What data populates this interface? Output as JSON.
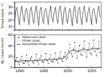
{
  "chart_data": [
    {
      "type": "line",
      "y_label": "Temperature, °C",
      "x": [
        1989,
        1989.25,
        1989.5,
        1989.75,
        1990,
        1990.25,
        1990.5,
        1990.75,
        1991,
        1991.25,
        1991.5,
        1991.75,
        1992,
        1992.25,
        1992.5,
        1992.75,
        1993,
        1993.25,
        1993.5,
        1993.75,
        1994,
        1994.25,
        1994.5,
        1994.75,
        1995,
        1995.25,
        1995.5,
        1995.75,
        1996,
        1996.25,
        1996.5,
        1996.75,
        1997,
        1997.25,
        1997.5,
        1997.75,
        1998,
        1998.25,
        1998.5,
        1998.75,
        1999,
        1999.25,
        1999.5,
        1999.75,
        2000,
        2000.25,
        2000.5,
        2000.75,
        2001,
        2001.25,
        2001.5,
        2001.75,
        2002,
        2002.25,
        2002.5,
        2002.75,
        2003,
        2003.25,
        2003.5,
        2003.75,
        2004,
        2004.25,
        2004.5,
        2004.75,
        2005,
        2005.25,
        2005.5,
        2005.75,
        2006,
        2006.25,
        2006.5,
        2006.75
      ],
      "series": [
        {
          "color": "#333333",
          "values": [
            17,
            27,
            30,
            22,
            16,
            26,
            31,
            23,
            18,
            27,
            29,
            22,
            16,
            28,
            30,
            21,
            17,
            26,
            31,
            23,
            15,
            27,
            30,
            22,
            17,
            28,
            29,
            23,
            16,
            26,
            31,
            22,
            18,
            27,
            30,
            21,
            17,
            28,
            31,
            23,
            16,
            27,
            30,
            22,
            17,
            26,
            29,
            23,
            15,
            27,
            31,
            22,
            17,
            28,
            30,
            21,
            16,
            27,
            31,
            23,
            18,
            26,
            30,
            22,
            16,
            28,
            29,
            23,
            17,
            27,
            31,
            22
          ]
        }
      ],
      "xlim": [
        1989,
        2007
      ],
      "xticks": [
        1990,
        1995,
        2000,
        2005
      ],
      "ylim": [
        12,
        34
      ],
      "yticks": [
        15,
        20,
        25,
        30
      ],
      "tick_labels": "y"
    },
    {
      "type": "line",
      "y_label": "No. cases/month",
      "x": [
        1989,
        1989.25,
        1989.5,
        1989.75,
        1990,
        1990.25,
        1990.5,
        1990.75,
        1991,
        1991.25,
        1991.5,
        1991.75,
        1992,
        1992.25,
        1992.5,
        1992.75,
        1993,
        1993.25,
        1993.5,
        1993.75,
        1994,
        1994.25,
        1994.5,
        1994.75,
        1995,
        1995.25,
        1995.5,
        1995.75,
        1996,
        1996.25,
        1996.5,
        1996.75,
        1997,
        1997.25,
        1997.5,
        1997.75,
        1998,
        1998.25,
        1998.5,
        1998.75,
        1999,
        1999.25,
        1999.5,
        1999.75,
        2000,
        2000.25,
        2000.5,
        2000.75,
        2001,
        2001.25,
        2001.5,
        2001.75,
        2002,
        2002.25,
        2002.5,
        2002.75,
        2003,
        2003.25,
        2003.5,
        2003.75,
        2004,
        2004.25,
        2004.5,
        2004.75,
        2005,
        2005.25,
        2005.5,
        2005.75,
        2006,
        2006.25,
        2006.5,
        2006.75
      ],
      "series": [
        {
          "name": "Observed cases",
          "type": "scatter",
          "marker": "circle",
          "color": "#222222",
          "values": [
            6,
            12,
            18,
            9,
            5,
            14,
            20,
            8,
            7,
            11,
            22,
            10,
            4,
            15,
            19,
            9,
            8,
            13,
            24,
            11,
            6,
            16,
            21,
            10,
            9,
            14,
            25,
            12,
            7,
            17,
            23,
            11,
            10,
            15,
            26,
            13,
            8,
            18,
            28,
            14,
            11,
            20,
            27,
            15,
            18,
            30,
            42,
            25,
            20,
            33,
            45,
            27,
            17,
            29,
            40,
            24,
            22,
            35,
            48,
            28,
            19,
            31,
            44,
            26,
            23,
            36,
            50,
            29,
            21,
            34,
            47,
            27
          ]
        },
        {
          "name": "Fitted cases",
          "type": "line",
          "line_style": "dashed",
          "color": "#777777",
          "values": [
            8,
            12,
            16,
            10,
            7,
            13,
            18,
            9,
            8,
            12,
            19,
            10,
            7,
            14,
            18,
            10,
            9,
            13,
            21,
            11,
            8,
            15,
            20,
            11,
            10,
            14,
            22,
            12,
            9,
            16,
            21,
            12,
            11,
            15,
            23,
            13,
            10,
            17,
            25,
            14,
            12,
            19,
            25,
            16,
            17,
            28,
            38,
            24,
            20,
            31,
            41,
            26,
            18,
            28,
            38,
            24,
            21,
            33,
            44,
            27,
            20,
            30,
            41,
            26,
            22,
            34,
            46,
            28,
            21,
            33,
            44,
            27
          ]
        },
        {
          "name": "Smoothed fitted cases",
          "type": "line",
          "line_style": "solid",
          "color": "#000000",
          "values": [
            11,
            11,
            11,
            11,
            11,
            11,
            12,
            12,
            12,
            12,
            12,
            12,
            12,
            12,
            12,
            12,
            12,
            13,
            13,
            13,
            13,
            13,
            13,
            13,
            13,
            14,
            14,
            14,
            14,
            14,
            14,
            14,
            15,
            15,
            15,
            15,
            15,
            16,
            16,
            16,
            17,
            18,
            19,
            21,
            24,
            27,
            29,
            30,
            31,
            31,
            31,
            31,
            30,
            30,
            30,
            31,
            32,
            32,
            33,
            33,
            32,
            32,
            33,
            33,
            34,
            34,
            34,
            35,
            34,
            34,
            34,
            35
          ]
        }
      ],
      "xlim": [
        1989,
        2007
      ],
      "xticks": [
        1990,
        1995,
        2000,
        2005
      ],
      "ylim": [
        0,
        60
      ],
      "yticks": [
        0,
        20,
        40,
        60
      ],
      "legend": "upper left"
    }
  ]
}
